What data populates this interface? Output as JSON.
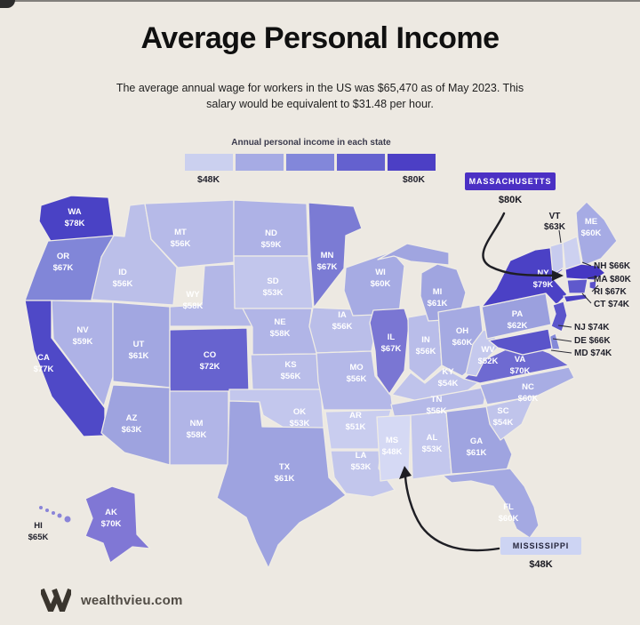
{
  "header": {
    "title": "Average Personal Income",
    "subtitle_line1": "The average annual wage for workers in the US was $65,470 as of May 2023. This",
    "subtitle_line2": "salary would be equivalent to $31.48 per hour."
  },
  "legend": {
    "caption": "Annual personal income in each state",
    "min_label": "$48K",
    "max_label": "$80K",
    "colors": [
      "#cbd0ef",
      "#a6abe4",
      "#8287da",
      "#6461cf",
      "#4c3fc5"
    ]
  },
  "callouts": {
    "massachusetts": {
      "label": "MASSACHUSETTS",
      "value": "$80K"
    },
    "mississippi": {
      "label": "MISSISSIPPI",
      "value": "$48K"
    }
  },
  "map": {
    "states": [
      {
        "abbr": "WA",
        "value": "$78K",
        "fill": "#4A42C5"
      },
      {
        "abbr": "OR",
        "value": "$67K",
        "fill": "#8186D8"
      },
      {
        "abbr": "CA",
        "value": "$77K",
        "fill": "#4F49C7"
      },
      {
        "abbr": "NV",
        "value": "$59K",
        "fill": "#AEB2E6"
      },
      {
        "abbr": "ID",
        "value": "$56K",
        "fill": "#BBBFE9"
      },
      {
        "abbr": "MT",
        "value": "$56K",
        "fill": "#B6BAE8"
      },
      {
        "abbr": "WY",
        "value": "$58K",
        "fill": "#B3B7E7"
      },
      {
        "abbr": "UT",
        "value": "$61K",
        "fill": "#A2A7E1"
      },
      {
        "abbr": "CO",
        "value": "$72K",
        "fill": "#6763CF"
      },
      {
        "abbr": "AZ",
        "value": "$63K",
        "fill": "#9EA3DF"
      },
      {
        "abbr": "NM",
        "value": "$58K",
        "fill": "#B1B5E7"
      },
      {
        "abbr": "ND",
        "value": "$59K",
        "fill": "#AEB2E6"
      },
      {
        "abbr": "SD",
        "value": "$53K",
        "fill": "#C2C6EC"
      },
      {
        "abbr": "NE",
        "value": "$58K",
        "fill": "#B1B5E7"
      },
      {
        "abbr": "KS",
        "value": "$56K",
        "fill": "#B9BDE9"
      },
      {
        "abbr": "OK",
        "value": "$53K",
        "fill": "#C3C7ED"
      },
      {
        "abbr": "TX",
        "value": "$61K",
        "fill": "#9EA3E0"
      },
      {
        "abbr": "MN",
        "value": "$67K",
        "fill": "#7B7BD4"
      },
      {
        "abbr": "IA",
        "value": "$56K",
        "fill": "#BABEE9"
      },
      {
        "abbr": "MO",
        "value": "$56K",
        "fill": "#B4B8E8"
      },
      {
        "abbr": "AR",
        "value": "$51K",
        "fill": "#C9CDEF"
      },
      {
        "abbr": "LA",
        "value": "$53K",
        "fill": "#C2C6EC"
      },
      {
        "abbr": "WI",
        "value": "$60K",
        "fill": "#A6ABE3"
      },
      {
        "abbr": "IL",
        "value": "$67K",
        "fill": "#7A76D3"
      },
      {
        "abbr": "IN",
        "value": "$56K",
        "fill": "#B9BDE9"
      },
      {
        "abbr": "MI",
        "value": "$61K",
        "fill": "#A0A5E0"
      },
      {
        "abbr": "OH",
        "value": "$60K",
        "fill": "#A5AAE2"
      },
      {
        "abbr": "KY",
        "value": "$54K",
        "fill": "#BFC3EB"
      },
      {
        "abbr": "TN",
        "value": "$56K",
        "fill": "#B5B9E8"
      },
      {
        "abbr": "MS",
        "value": "$48K",
        "fill": "#D5D9F4"
      },
      {
        "abbr": "AL",
        "value": "$53K",
        "fill": "#C3C7ED"
      },
      {
        "abbr": "GA",
        "value": "$61K",
        "fill": "#9FA4E0"
      },
      {
        "abbr": "FL",
        "value": "$60K",
        "fill": "#A4A9E2"
      },
      {
        "abbr": "SC",
        "value": "$54K",
        "fill": "#C0C4EB"
      },
      {
        "abbr": "NC",
        "value": "$60K",
        "fill": "#A8ADE4"
      },
      {
        "abbr": "VA",
        "value": "$70K",
        "fill": "#6E6AD1"
      },
      {
        "abbr": "WV",
        "value": "$52K",
        "fill": "#C5C9ED"
      },
      {
        "abbr": "PA",
        "value": "$62K",
        "fill": "#9BA0DE"
      },
      {
        "abbr": "NY",
        "value": "$79K",
        "fill": "#4B41C5"
      },
      {
        "abbr": "VT",
        "value": "$63K",
        "fill": "#C7CBEE"
      },
      {
        "abbr": "NH",
        "value": "$66K",
        "fill": "#CDD1F0"
      },
      {
        "abbr": "ME",
        "value": "$60K",
        "fill": "#A6ABE4"
      },
      {
        "abbr": "MA",
        "value": "$80K",
        "fill": "#4537C2"
      },
      {
        "abbr": "RI",
        "value": "$67K",
        "fill": "#5A50C9"
      },
      {
        "abbr": "CT",
        "value": "$74K",
        "fill": "#5F59CC"
      },
      {
        "abbr": "NJ",
        "value": "$74K",
        "fill": "#5B55CB"
      },
      {
        "abbr": "DE",
        "value": "$66K",
        "fill": "#8489D8"
      },
      {
        "abbr": "MD",
        "value": "$74K",
        "fill": "#5A54CA"
      },
      {
        "abbr": "AK",
        "value": "$70K",
        "fill": "#8077D5"
      },
      {
        "abbr": "HI",
        "value": "$65K",
        "fill": "#8A84D8"
      }
    ],
    "side_labels": [
      {
        "abbr": "VT",
        "value": "$63K"
      },
      {
        "abbr": "NH",
        "value": "$66K"
      },
      {
        "abbr": "MA",
        "value": "$80K"
      },
      {
        "abbr": "RI",
        "value": "$67K"
      },
      {
        "abbr": "CT",
        "value": "$74K"
      },
      {
        "abbr": "NJ",
        "value": "$74K"
      },
      {
        "abbr": "DE",
        "value": "$66K"
      },
      {
        "abbr": "MD",
        "value": "$74K"
      }
    ]
  },
  "footer": {
    "site": "wealthvieu.com"
  }
}
